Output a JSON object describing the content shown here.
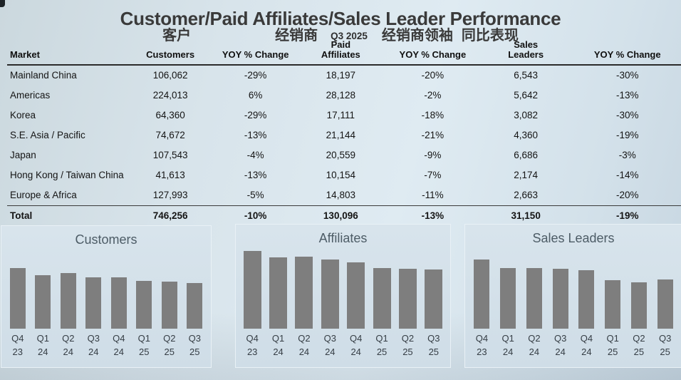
{
  "title": "Customer/Paid Affiliates/Sales Leader Performance",
  "subtitle": {
    "customers_cn": "客户",
    "affiliates_cn": "经销商",
    "quarter": "Q3 2025",
    "leaders_cn": "经销商领袖",
    "yoy_cn": "同比表现"
  },
  "table": {
    "columns": [
      {
        "label": "Market"
      },
      {
        "label": "Customers"
      },
      {
        "label": "YOY % Change"
      },
      {
        "top": "Paid",
        "label": "Affiliates"
      },
      {
        "label": "YOY % Change"
      },
      {
        "top": "Sales",
        "label": "Leaders"
      },
      {
        "label": "YOY % Change"
      }
    ],
    "rows": [
      {
        "market": "Mainland China",
        "customers": "106,062",
        "customers_yoy": "-29%",
        "affiliates": "18,197",
        "affiliates_yoy": "-20%",
        "leaders": "6,543",
        "leaders_yoy": "-30%"
      },
      {
        "market": "Americas",
        "customers": "224,013",
        "customers_yoy": "6%",
        "affiliates": "28,128",
        "affiliates_yoy": "-2%",
        "leaders": "5,642",
        "leaders_yoy": "-13%"
      },
      {
        "market": "Korea",
        "customers": "64,360",
        "customers_yoy": "-29%",
        "affiliates": "17,111",
        "affiliates_yoy": "-18%",
        "leaders": "3,082",
        "leaders_yoy": "-30%"
      },
      {
        "market": "S.E. Asia / Pacific",
        "customers": "74,672",
        "customers_yoy": "-13%",
        "affiliates": "21,144",
        "affiliates_yoy": "-21%",
        "leaders": "4,360",
        "leaders_yoy": "-19%"
      },
      {
        "market": "Japan",
        "customers": "107,543",
        "customers_yoy": "-4%",
        "affiliates": "20,559",
        "affiliates_yoy": "-9%",
        "leaders": "6,686",
        "leaders_yoy": "-3%"
      },
      {
        "market": "Hong Kong / Taiwan China",
        "customers": "41,613",
        "customers_yoy": "-13%",
        "affiliates": "10,154",
        "affiliates_yoy": "-7%",
        "leaders": "2,174",
        "leaders_yoy": "-14%"
      },
      {
        "market": "Europe & Africa",
        "customers": "127,993",
        "customers_yoy": "-5%",
        "affiliates": "14,803",
        "affiliates_yoy": "-11%",
        "leaders": "2,663",
        "leaders_yoy": "-20%"
      },
      {
        "market": "Total",
        "customers": "746,256",
        "customers_yoy": "-10%",
        "affiliates": "130,096",
        "affiliates_yoy": "-13%",
        "leaders": "31,150",
        "leaders_yoy": "-19%"
      }
    ]
  },
  "chart_data": [
    {
      "type": "bar",
      "title": "Customers",
      "categories": [
        "Q4 23",
        "Q1 24",
        "Q2 24",
        "Q3 24",
        "Q4 24",
        "Q1 25",
        "Q2 25",
        "Q3 25"
      ],
      "values": [
        991000,
        875000,
        909000,
        840000,
        843000,
        781000,
        770000,
        746256
      ],
      "xlabel": "",
      "ylabel": "",
      "ylim": [
        0,
        1000000
      ],
      "grid": false,
      "legend": false,
      "bar_color": "#7e7e7e"
    },
    {
      "type": "bar",
      "title": "Affiliates",
      "categories": [
        "Q4 23",
        "Q1 24",
        "Q2 24",
        "Q3 24",
        "Q4 24",
        "Q1 25",
        "Q2 25",
        "Q3 25"
      ],
      "values": [
        170500,
        156500,
        158000,
        152000,
        146000,
        133000,
        131800,
        130096
      ],
      "xlabel": "",
      "ylabel": "",
      "ylim": [
        0,
        175000
      ],
      "grid": false,
      "legend": false,
      "bar_color": "#7e7e7e"
    },
    {
      "type": "bar",
      "title": "Sales Leaders",
      "categories": [
        "Q4 23",
        "Q1 24",
        "Q2 24",
        "Q3 24",
        "Q4 24",
        "Q1 25",
        "Q2 25",
        "Q3 25"
      ],
      "values": [
        43700,
        38300,
        38300,
        38000,
        36800,
        30700,
        29200,
        31150
      ],
      "xlabel": "",
      "ylabel": "",
      "ylim": [
        0,
        45000
      ],
      "grid": false,
      "legend": false,
      "bar_color": "#7e7e7e"
    }
  ]
}
